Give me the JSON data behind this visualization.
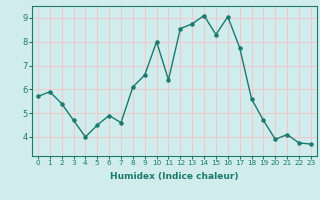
{
  "x": [
    0,
    1,
    2,
    3,
    4,
    5,
    6,
    7,
    8,
    9,
    10,
    11,
    12,
    13,
    14,
    15,
    16,
    17,
    18,
    19,
    20,
    21,
    22,
    23
  ],
  "y": [
    5.7,
    5.9,
    5.4,
    4.7,
    4.0,
    4.5,
    4.9,
    4.6,
    6.1,
    6.6,
    8.0,
    6.4,
    8.55,
    8.75,
    9.1,
    8.3,
    9.05,
    7.75,
    5.6,
    4.7,
    3.9,
    4.1,
    3.75,
    3.7
  ],
  "line_color": "#1a7a6e",
  "marker": "o",
  "marker_size": 2.2,
  "linewidth": 1.0,
  "xlabel": "Humidex (Indice chaleur)",
  "xlim": [
    -0.5,
    23.5
  ],
  "ylim": [
    3.2,
    9.5
  ],
  "yticks": [
    4,
    5,
    6,
    7,
    8,
    9
  ],
  "xticks": [
    0,
    1,
    2,
    3,
    4,
    5,
    6,
    7,
    8,
    9,
    10,
    11,
    12,
    13,
    14,
    15,
    16,
    17,
    18,
    19,
    20,
    21,
    22,
    23
  ],
  "bg_color": "#d0ecec",
  "grid_color": "#f0c8c8",
  "tick_color": "#1a7a6e",
  "label_color": "#1a7a6e",
  "xlabel_fontsize": 6.5,
  "tick_fontsize_x": 5.2,
  "tick_fontsize_y": 6.0
}
